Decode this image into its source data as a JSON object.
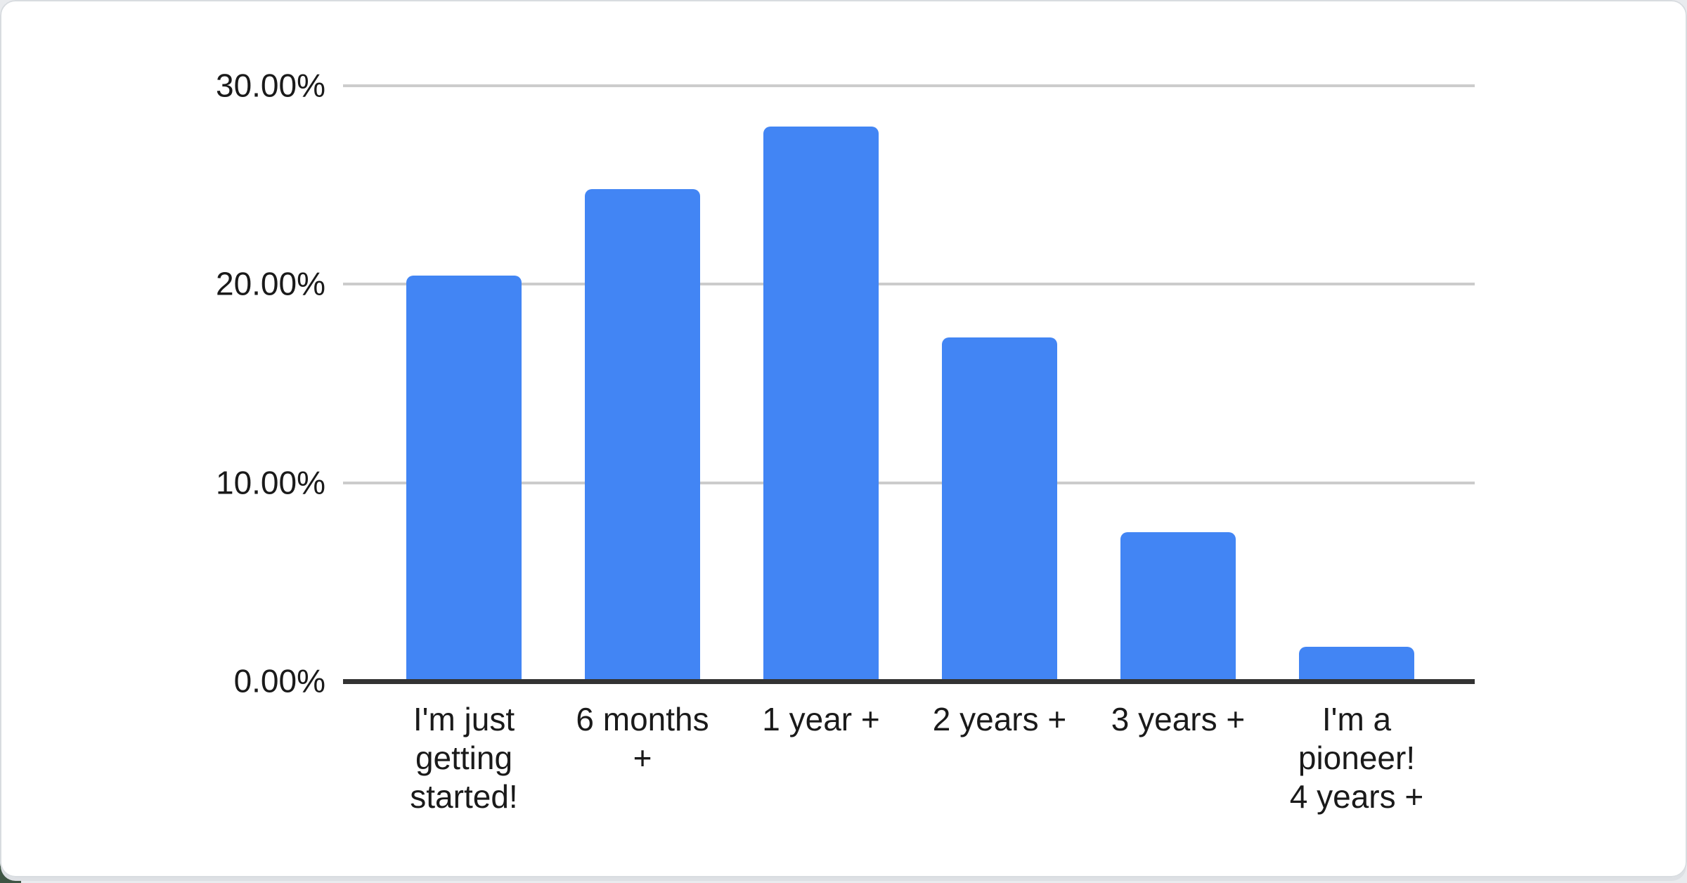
{
  "page": {
    "background_color": "#e9ebee",
    "card_background": "#ffffff",
    "card_border_color": "#d8dce0",
    "corner_accent_color": "#3e5544"
  },
  "chart_data": {
    "type": "bar",
    "title": "",
    "xlabel": "",
    "ylabel": "",
    "categories": [
      "I'm just getting started!",
      "6 months +",
      "1 year +",
      "2 years +",
      "3 years +",
      "I'm a pioneer! 4 years +"
    ],
    "categories_display": [
      "I'm just\ngetting\nstarted!",
      "6 months\n+",
      "1 year +",
      "2 years +",
      "3 years +",
      "I'm a\npioneer!\n4 years +"
    ],
    "values": [
      20.44,
      24.79,
      27.95,
      17.32,
      7.51,
      1.74
    ],
    "unit": "%",
    "ylim": [
      0,
      30
    ],
    "y_tick_interval": 10,
    "y_ticks": [
      "30.00%",
      "20.00%",
      "10.00%",
      "0.00%"
    ],
    "grid": "horizontal",
    "legend": "none",
    "bar_color": "#4285f4",
    "gridline_color": "#cccccc",
    "axis_color": "#333333",
    "label_color": "#1a1a1a"
  }
}
